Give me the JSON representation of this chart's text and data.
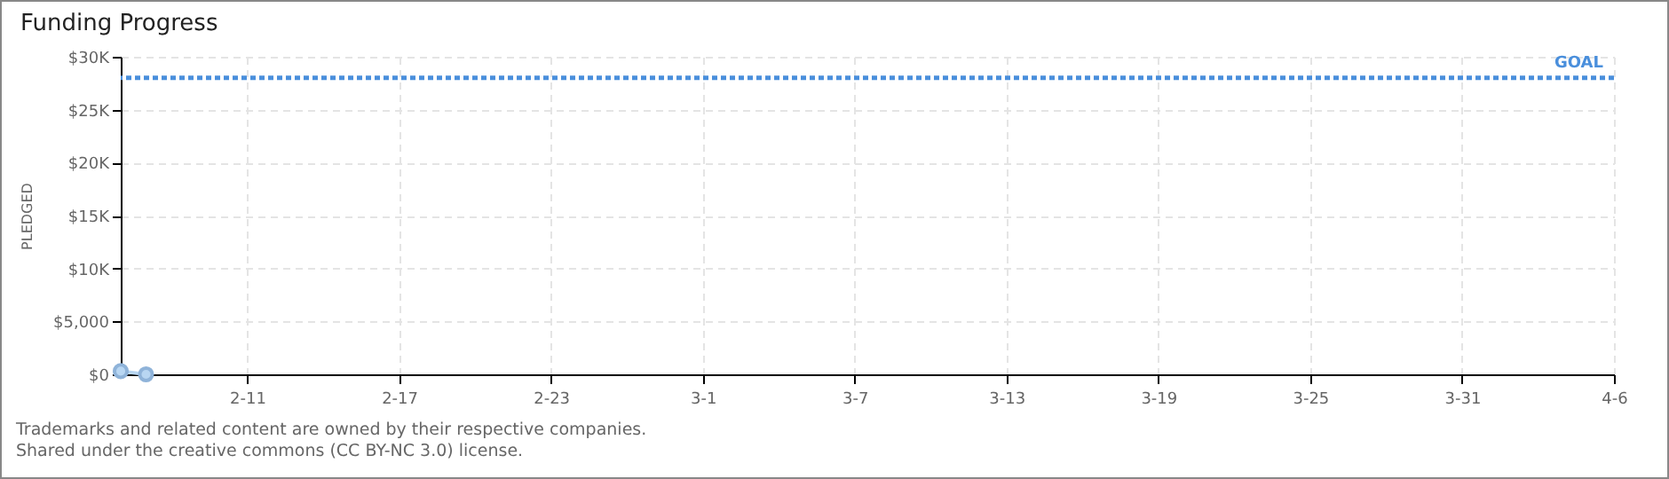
{
  "chart_data": {
    "type": "line",
    "title": "Funding Progress",
    "ylabel": "PLEDGED",
    "x": [
      "--02-06",
      "--02-07"
    ],
    "series": [
      {
        "color": "#b8d6f2",
        "values": [
          300,
          0
        ]
      }
    ],
    "marker": "circle",
    "line_style": "solid",
    "grid": true,
    "xlim": [
      "--02-06",
      "--04-06"
    ],
    "xticks": [
      {
        "value": "--02-11",
        "label": "2-11"
      },
      {
        "value": "--02-17",
        "label": "2-17"
      },
      {
        "value": "--02-23",
        "label": "2-23"
      },
      {
        "value": "--03-01",
        "label": "3-1"
      },
      {
        "value": "--03-07",
        "label": "3-7"
      },
      {
        "value": "--03-13",
        "label": "3-13"
      },
      {
        "value": "--03-19",
        "label": "3-19"
      },
      {
        "value": "--03-25",
        "label": "3-25"
      },
      {
        "value": "--03-31",
        "label": "3-31"
      },
      {
        "value": "--04-06",
        "label": "4-6"
      }
    ],
    "ylim": [
      0,
      30000
    ],
    "yticks": [
      {
        "value": 0,
        "label": "$0"
      },
      {
        "value": 5000,
        "label": "$5,000"
      },
      {
        "value": 10000,
        "label": "$10K"
      },
      {
        "value": 15000,
        "label": "$15K"
      },
      {
        "value": 20000,
        "label": "$20K"
      },
      {
        "value": 25000,
        "label": "$25K"
      },
      {
        "value": 30000,
        "label": "$30K"
      }
    ],
    "ref_lines": [
      {
        "axis": "y",
        "value": 28000,
        "label": "GOAL",
        "color": "#4a8fdc",
        "line_style": "dotted"
      }
    ],
    "annotations": [
      "Trademarks and related content are owned by their respective companies.",
      "Shared under the creative commons (CC BY-NC 3.0) license."
    ]
  }
}
